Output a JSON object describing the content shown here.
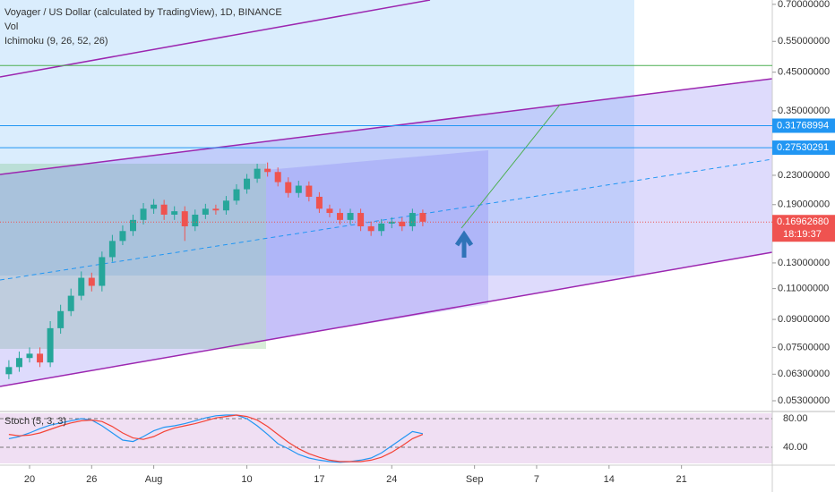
{
  "header": {
    "title": "Voyager / US Dollar (calculated by TradingView), 1D, BINANCE",
    "indicators": [
      "Vol",
      "Ichimoku (9, 26, 52, 26)"
    ]
  },
  "chart_data": [
    {
      "type": "candlestick",
      "log": true,
      "x": [
        -2,
        -1,
        0,
        1,
        2,
        3,
        4,
        5,
        6,
        7,
        8,
        9,
        10,
        11,
        12,
        13,
        14,
        15,
        16,
        17,
        18,
        19,
        20,
        21,
        22,
        23,
        24,
        25,
        26,
        27,
        28,
        29,
        30,
        31,
        32,
        33,
        34,
        35,
        36,
        37,
        38
      ],
      "open": [
        0.063,
        0.066,
        0.07,
        0.072,
        0.068,
        0.085,
        0.095,
        0.105,
        0.118,
        0.112,
        0.135,
        0.15,
        0.16,
        0.172,
        0.185,
        0.19,
        0.178,
        0.182,
        0.165,
        0.178,
        0.185,
        0.183,
        0.195,
        0.21,
        0.225,
        0.24,
        0.235,
        0.22,
        0.205,
        0.215,
        0.2,
        0.185,
        0.18,
        0.172,
        0.18,
        0.165,
        0.16,
        0.168,
        0.17,
        0.165,
        0.18
      ],
      "high": [
        0.069,
        0.073,
        0.075,
        0.075,
        0.089,
        0.099,
        0.11,
        0.123,
        0.122,
        0.14,
        0.156,
        0.166,
        0.178,
        0.192,
        0.197,
        0.196,
        0.188,
        0.188,
        0.184,
        0.191,
        0.19,
        0.201,
        0.217,
        0.232,
        0.248,
        0.25,
        0.242,
        0.227,
        0.222,
        0.221,
        0.206,
        0.19,
        0.185,
        0.185,
        0.185,
        0.17,
        0.173,
        0.175,
        0.175,
        0.185,
        0.184
      ],
      "low": [
        0.061,
        0.064,
        0.068,
        0.066,
        0.066,
        0.082,
        0.092,
        0.102,
        0.108,
        0.108,
        0.131,
        0.146,
        0.155,
        0.167,
        0.179,
        0.172,
        0.172,
        0.15,
        0.16,
        0.173,
        0.178,
        0.178,
        0.19,
        0.204,
        0.219,
        0.228,
        0.214,
        0.199,
        0.199,
        0.194,
        0.18,
        0.175,
        0.167,
        0.167,
        0.16,
        0.155,
        0.155,
        0.163,
        0.16,
        0.16,
        0.165
      ],
      "close": [
        0.066,
        0.07,
        0.072,
        0.068,
        0.085,
        0.095,
        0.105,
        0.118,
        0.112,
        0.135,
        0.15,
        0.16,
        0.172,
        0.185,
        0.19,
        0.178,
        0.182,
        0.165,
        0.178,
        0.185,
        0.183,
        0.195,
        0.21,
        0.225,
        0.24,
        0.235,
        0.22,
        0.205,
        0.215,
        0.2,
        0.185,
        0.18,
        0.172,
        0.18,
        0.165,
        0.16,
        0.168,
        0.17,
        0.165,
        0.18,
        0.17
      ],
      "up_color": "#26a69a",
      "down_color": "#ef5350",
      "xlim": [
        -2.857,
        71.775
      ],
      "ylim": [
        0.05,
        0.72
      ],
      "xticks": [
        {
          "value": 0,
          "label": "20"
        },
        {
          "value": 6,
          "label": "26"
        },
        {
          "value": 12,
          "label": "Aug"
        },
        {
          "value": 21,
          "label": "10"
        },
        {
          "value": 28,
          "label": "17"
        },
        {
          "value": 35,
          "label": "24"
        },
        {
          "value": 43,
          "label": "Sep"
        },
        {
          "value": 49,
          "label": "7"
        },
        {
          "value": 56,
          "label": "14"
        },
        {
          "value": 63,
          "label": "21"
        }
      ],
      "yticks": [
        {
          "value": 0.7,
          "label": "0.70000000"
        },
        {
          "value": 0.55,
          "label": "0.55000000"
        },
        {
          "value": 0.45,
          "label": "0.45000000"
        },
        {
          "value": 0.35,
          "label": "0.35000000"
        },
        {
          "value": 0.23,
          "label": "0.23000000"
        },
        {
          "value": 0.19,
          "label": "0.19000000"
        },
        {
          "value": 0.13,
          "label": "0.13000000"
        },
        {
          "value": 0.11,
          "label": "0.11000000"
        },
        {
          "value": 0.09,
          "label": "0.09000000"
        },
        {
          "value": 0.075,
          "label": "0.07500000"
        },
        {
          "value": 0.063,
          "label": "0.06300000"
        },
        {
          "value": 0.053,
          "label": "0.05300000"
        }
      ],
      "price_lines": [
        {
          "value": 0.47,
          "color": "#4caf50"
        },
        {
          "value": 0.31768994,
          "label": "0.31768994",
          "color": "#2196f3"
        },
        {
          "value": 0.27530291,
          "label": "0.27530291",
          "color": "#2196f3"
        }
      ],
      "last_price": {
        "value": 0.1696268,
        "label": "0.16962680",
        "countdown": "18:19:37",
        "color": "#ef5350"
      }
    },
    {
      "type": "line",
      "title": "Stoch (5, 3, 3)",
      "x": [
        -2,
        -1,
        0,
        1,
        2,
        3,
        4,
        5,
        6,
        7,
        8,
        9,
        10,
        11,
        12,
        13,
        14,
        15,
        16,
        17,
        18,
        19,
        20,
        21,
        22,
        23,
        24,
        25,
        26,
        27,
        28,
        29,
        30,
        31,
        32,
        33,
        34,
        35,
        36,
        37,
        38
      ],
      "series": [
        {
          "color": "#2196f3",
          "values": [
            52,
            55,
            60,
            66,
            71,
            74,
            77,
            80,
            78,
            70,
            60,
            50,
            48,
            55,
            63,
            68,
            70,
            73,
            77,
            81,
            84,
            85,
            85,
            80,
            70,
            58,
            45,
            38,
            30,
            25,
            22,
            20,
            19,
            20,
            22,
            25,
            32,
            42,
            52,
            62,
            59
          ]
        },
        {
          "color": "#f44336",
          "values": [
            58,
            56,
            57,
            60,
            65,
            70,
            74,
            77,
            78,
            76,
            69,
            60,
            53,
            51,
            55,
            62,
            67,
            70,
            73,
            77,
            81,
            83,
            85,
            83,
            78,
            69,
            58,
            47,
            38,
            31,
            26,
            22,
            20,
            20,
            20,
            22,
            26,
            33,
            42,
            52,
            58
          ]
        }
      ],
      "xlim": [
        -2.857,
        71.775
      ],
      "ylim": [
        17.5,
        87.5
      ],
      "yticks": [
        {
          "value": 80,
          "label": "80.00"
        },
        {
          "value": 40,
          "label": "40.00"
        }
      ]
    }
  ]
}
